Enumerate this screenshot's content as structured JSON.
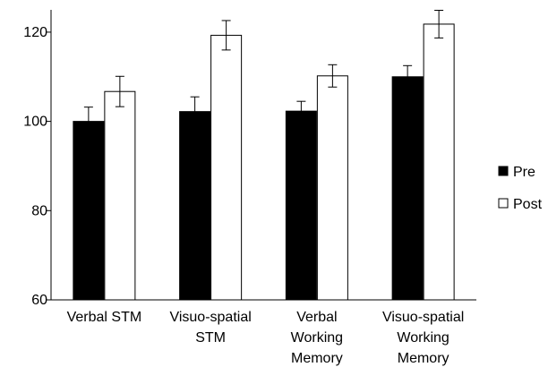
{
  "chart_data": {
    "type": "bar",
    "title": "",
    "xlabel": "",
    "ylabel": "",
    "ylim": [
      60,
      125
    ],
    "yticks": [
      60,
      80,
      100,
      120
    ],
    "categories": [
      [
        "Verbal STM"
      ],
      [
        "Visuo-spatial",
        "STM"
      ],
      [
        "Verbal",
        "Working",
        "Memory"
      ],
      [
        "Visuo-spatial",
        "Working",
        "Memory"
      ]
    ],
    "series": [
      {
        "name": "Pre",
        "color": "#000000",
        "values": [
          100.0,
          102.2,
          102.3,
          110.0
        ],
        "errors": [
          3.2,
          3.3,
          2.2,
          2.5
        ]
      },
      {
        "name": "Post",
        "color": "#ffffff",
        "values": [
          106.7,
          119.3,
          110.2,
          121.8
        ],
        "errors": [
          3.4,
          3.3,
          2.5,
          3.1
        ]
      }
    ],
    "legend": "right",
    "grid": false
  }
}
